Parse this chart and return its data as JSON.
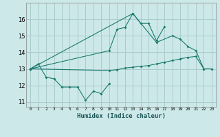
{
  "xlabel": "Humidex (Indice chaleur)",
  "bg_color": "#cce8e8",
  "grid_color": "#aacccc",
  "line_color": "#1a7a6e",
  "xlim": [
    -0.5,
    23.5
  ],
  "ylim": [
    10.7,
    17.0
  ],
  "yticks": [
    11,
    12,
    13,
    14,
    15,
    16
  ],
  "xticks": [
    0,
    1,
    2,
    3,
    4,
    5,
    6,
    7,
    8,
    9,
    10,
    11,
    12,
    13,
    14,
    15,
    16,
    17,
    18,
    19,
    20,
    21,
    22,
    23
  ],
  "s1_x": [
    0,
    1,
    2,
    3,
    4,
    5,
    6,
    7,
    8,
    9,
    10
  ],
  "s1_y": [
    13.0,
    13.3,
    12.5,
    12.4,
    11.9,
    11.9,
    11.9,
    11.1,
    11.65,
    11.5,
    12.1
  ],
  "s2_x": [
    0,
    10,
    11,
    12,
    13,
    14,
    15,
    16,
    17
  ],
  "s2_y": [
    13.0,
    14.1,
    15.4,
    15.5,
    16.35,
    15.75,
    15.75,
    14.7,
    15.55
  ],
  "s3_x": [
    0,
    13,
    16,
    18,
    19,
    20,
    21,
    22,
    23
  ],
  "s3_y": [
    13.0,
    16.35,
    14.6,
    15.0,
    14.8,
    14.35,
    14.1,
    13.0,
    13.0
  ],
  "s4_x": [
    0,
    10,
    11,
    12,
    13,
    14,
    15,
    16,
    17,
    18,
    19,
    20,
    21,
    22
  ],
  "s4_y": [
    13.0,
    12.9,
    12.95,
    13.05,
    13.1,
    13.15,
    13.2,
    13.3,
    13.4,
    13.5,
    13.6,
    13.7,
    13.75,
    13.0
  ]
}
